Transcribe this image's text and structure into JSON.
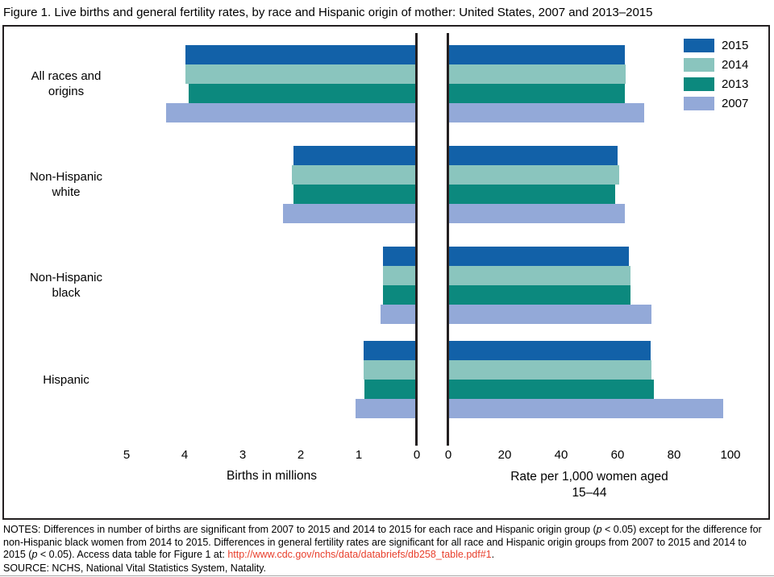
{
  "title": "Figure 1.  Live births and general fertility rates, by race and Hispanic origin of mother: United States, 2007 and 2013–2015",
  "legend": [
    "2015",
    "2014",
    "2013",
    "2007"
  ],
  "colors": {
    "2015": "#1261a8",
    "2014": "#8ac5be",
    "2013": "#0c897e",
    "2007": "#93a9d8",
    "link": "#e8402d",
    "axis": "#231f20"
  },
  "chart_data": {
    "type": "bar",
    "orientation": "horizontal",
    "title": "Live births and general fertility rates, by race and Hispanic origin of mother: United States, 2007 and 2013–2015",
    "legend_position": "top-right",
    "grid": false,
    "categories": [
      "All races and origins",
      "Non-Hispanic white",
      "Non-Hispanic black",
      "Hispanic"
    ],
    "category_lines": [
      [
        "All races and",
        "origins"
      ],
      [
        "Non-Hispanic",
        "white"
      ],
      [
        "Non-Hispanic",
        "black"
      ],
      [
        "Hispanic"
      ]
    ],
    "panels": [
      {
        "id": "births",
        "title": "Births in millions",
        "xlim": [
          0,
          5
        ],
        "axis_reversed": true,
        "ticks": [
          5,
          4,
          3,
          2,
          1,
          0
        ],
        "series": [
          {
            "name": "2015",
            "values": [
              3.98,
              2.13,
              0.59,
              0.92
            ]
          },
          {
            "name": "2014",
            "values": [
              3.99,
              2.15,
              0.59,
              0.91
            ]
          },
          {
            "name": "2013",
            "values": [
              3.93,
              2.13,
              0.58,
              0.9
            ]
          },
          {
            "name": "2007",
            "values": [
              4.32,
              2.31,
              0.63,
              1.06
            ]
          }
        ]
      },
      {
        "id": "rate",
        "title": "Rate per 1,000 women aged 15–44",
        "title_lines": [
          "Rate per 1,000 women aged",
          "15–44"
        ],
        "xlim": [
          0,
          100
        ],
        "axis_reversed": false,
        "ticks": [
          0,
          20,
          40,
          60,
          80,
          100
        ],
        "series": [
          {
            "name": "2015",
            "values": [
              62.5,
              60.0,
              64.1,
              71.7
            ]
          },
          {
            "name": "2014",
            "values": [
              62.9,
              60.5,
              64.5,
              72.1
            ]
          },
          {
            "name": "2013",
            "values": [
              62.5,
              59.0,
              64.7,
              72.9
            ]
          },
          {
            "name": "2007",
            "values": [
              69.3,
              62.5,
              72.0,
              97.4
            ]
          }
        ]
      }
    ]
  },
  "notes": {
    "segments": [
      {
        "text": "NOTES: Differences in number of births are significant from 2007 to 2015 and 2014 to 2015 for each race and Hispanic origin group ("
      },
      {
        "text": "p",
        "italic": true
      },
      {
        "text": " < 0.05) except for the difference for non-Hispanic black women from 2014 to 2015. Differences in general fertility rates are significant for all race and Hispanic origin groups from 2007 to 2015 and 2014 to 2015 ("
      },
      {
        "text": "p",
        "italic": true
      },
      {
        "text": " < 0.05). Access data table for Figure 1 at: "
      },
      {
        "text": "http://www.cdc.gov/nchs/data/databriefs/db258_table.pdf#1",
        "link": true
      },
      {
        "text": "."
      }
    ],
    "source": "SOURCE: NCHS, National Vital Statistics System, Natality."
  }
}
